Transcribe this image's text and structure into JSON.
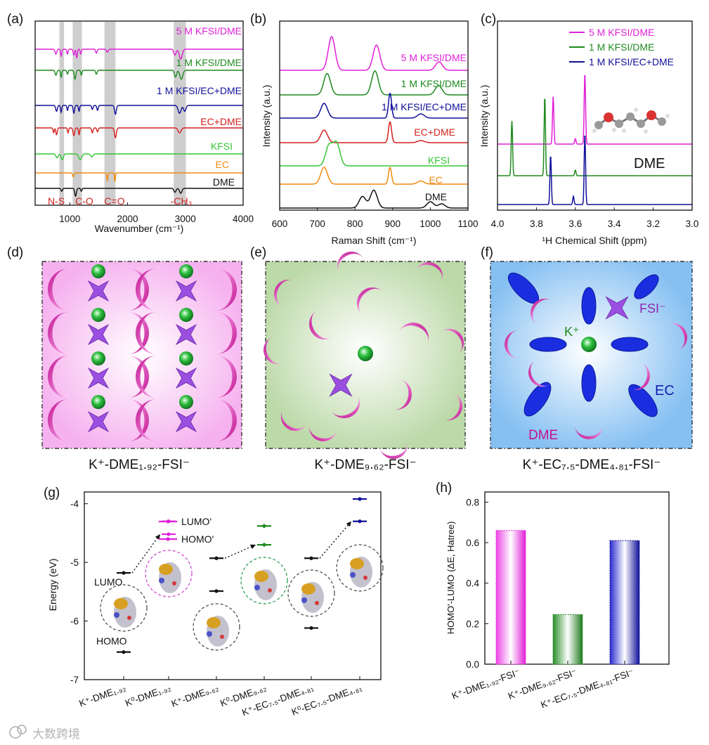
{
  "panel_labels": [
    "(a)",
    "(b)",
    "(c)",
    "(d)",
    "(e)",
    "(f)",
    "(g)",
    "(h)"
  ],
  "watermark": "大数跨境",
  "colors": {
    "magenta": "#e020d8",
    "green": "#1e8a1e",
    "blue": "#10109a",
    "red": "#d42020",
    "lightgreen": "#33c633",
    "orange": "#f08a10",
    "black": "#111111",
    "shade": "#bdbdbd"
  },
  "chart_data": [
    {
      "id": "a",
      "type": "line",
      "xlabel": "Wavenumber (cm⁻¹)",
      "ylabel": "",
      "xlim": [
        400,
        4000
      ],
      "xticks": [
        1000,
        2000,
        3000,
        4000
      ],
      "shaded_bands": [
        [
          820,
          900
        ],
        [
          1050,
          1210
        ],
        [
          1600,
          1790
        ],
        [
          2800,
          3010
        ]
      ],
      "band_labels": [
        "N-S",
        "C-O",
        "C=O",
        "-CH₃"
      ],
      "series": [
        {
          "name": "5 M KFSI/DME",
          "color": "#e020d8",
          "offset": 7
        },
        {
          "name": "1 M KFSI/DME",
          "color": "#1e8a1e",
          "offset": 6
        },
        {
          "name": "1 M KFSI/EC+DME",
          "color": "#10109a",
          "offset": 5
        },
        {
          "name": "EC+DME",
          "color": "#d42020",
          "offset": 4
        },
        {
          "name": "KFSI",
          "color": "#33c633",
          "offset": 3
        },
        {
          "name": "EC",
          "color": "#f08a10",
          "offset": 2
        },
        {
          "name": "DME",
          "color": "#111111",
          "offset": 1
        }
      ]
    },
    {
      "id": "b",
      "type": "line",
      "xlabel": "Raman Shift (cm⁻¹)",
      "ylabel": "Intensity (a.u.)",
      "xlim": [
        600,
        1100
      ],
      "xticks": [
        600,
        700,
        800,
        900,
        1000,
        1100
      ],
      "series": [
        {
          "name": "5 M KFSI/DME",
          "color": "#e020d8",
          "peaks": [
            [
              738,
              1.0
            ],
            [
              857,
              0.75
            ],
            [
              1023,
              0.25
            ]
          ]
        },
        {
          "name": "1 M KFSI/DME",
          "color": "#1e8a1e",
          "peaks": [
            [
              726,
              0.8
            ],
            [
              853,
              0.9
            ],
            [
              1022,
              0.35
            ]
          ]
        },
        {
          "name": "1 M KFSI/EC+DME",
          "color": "#10109a",
          "peaks": [
            [
              718,
              0.7
            ],
            [
              893,
              1.2
            ],
            [
              975,
              0.2
            ]
          ]
        },
        {
          "name": "EC+DME",
          "color": "#d42020",
          "peaks": [
            [
              718,
              0.6
            ],
            [
              893,
              1.0
            ],
            [
              975,
              0.1
            ]
          ]
        },
        {
          "name": "KFSI",
          "color": "#33c633",
          "peaks": [
            [
              731,
              0.8
            ],
            [
              751,
              0.9
            ]
          ]
        },
        {
          "name": "EC",
          "color": "#f08a10",
          "peaks": [
            [
              718,
              0.8
            ],
            [
              893,
              0.8
            ],
            [
              975,
              0.15
            ]
          ]
        },
        {
          "name": "DME",
          "color": "#111111",
          "peaks": [
            [
              820,
              0.55
            ],
            [
              850,
              0.85
            ],
            [
              1000,
              0.3
            ],
            [
              1030,
              0.2
            ]
          ]
        }
      ]
    },
    {
      "id": "c",
      "type": "line",
      "xlabel": "¹H Chemical Shift (ppm)",
      "ylabel": "Intensity (a.u.)",
      "xlim": [
        4.0,
        3.0
      ],
      "xticks": [
        4.0,
        3.8,
        3.6,
        3.4,
        3.2,
        3.0
      ],
      "inset_label": "DME",
      "series": [
        {
          "name": "5 M KFSI/DME",
          "color": "#e020d8",
          "peaks": [
            [
              3.714,
              0.9
            ],
            [
              3.551,
              1.35
            ],
            [
              3.6,
              0.1
            ]
          ]
        },
        {
          "name": "1 M KFSI/DME",
          "color": "#1e8a1e",
          "peaks": [
            [
              3.926,
              1.0
            ],
            [
              3.757,
              1.45
            ],
            [
              3.6,
              0.1
            ]
          ]
        },
        {
          "name": "1 M KFSI/EC+DME",
          "color": "#10109a",
          "peaks": [
            [
              3.727,
              0.9
            ],
            [
              3.551,
              1.3
            ],
            [
              3.61,
              0.15
            ]
          ]
        }
      ]
    },
    {
      "id": "g",
      "type": "scatter",
      "ylabel": "Energy (eV)",
      "ylim": [
        -7,
        -3.8
      ],
      "yticks": [
        -7,
        -6,
        -5,
        -4
      ],
      "categories": [
        "K⁺-DME₁.₉₂",
        "K⁰-DME₁.₉₂",
        "K⁺-DME₉.₆₂",
        "K⁰-DME₉.₆₂",
        "K⁺-EC₇.₅-DME₄.₈₁",
        "K⁰-EC₇.₅-DME₄.₈₁"
      ],
      "category_colors": [
        "#111111",
        "#e020d8",
        "#111111",
        "#1e8a1e",
        "#111111",
        "#10109a"
      ],
      "lumo": [
        -5.18,
        -4.3,
        -4.93,
        -4.38,
        -4.93,
        -3.92
      ],
      "homo": [
        -6.53,
        -4.52,
        -5.49,
        -4.7,
        -6.12,
        -4.3
      ],
      "legend": [
        "LUMO'",
        "HOMO'"
      ],
      "annotations": [
        "LUMO",
        "HOMO"
      ]
    },
    {
      "id": "h",
      "type": "bar",
      "ylabel": "HOMO'-LUMO (ΔE, Hatree)",
      "ylim": [
        0,
        0.85
      ],
      "yticks": [
        0.0,
        0.2,
        0.4,
        0.6,
        0.8
      ],
      "categories": [
        "K⁺-DME₁.₉₂-FSI⁻",
        "K⁺-DME₉.₆₂-FSI⁻",
        "K⁺-EC₇.₅-DME₄.₈₁-FSI⁻"
      ],
      "values": [
        0.66,
        0.245,
        0.61
      ],
      "colors": [
        "#e020d8",
        "#1e8a1e",
        "#10109a"
      ]
    }
  ],
  "schematics": {
    "d": {
      "caption": "K⁺-DME₁.₉₂-FSI⁻"
    },
    "e": {
      "caption": "K⁺-DME₉.₆₂-FSI⁻"
    },
    "f": {
      "caption": "K⁺-EC₇.₅-DME₄.₈₁-FSI⁻",
      "labels": [
        "K⁺",
        "FSI⁻",
        "EC",
        "DME"
      ]
    }
  }
}
